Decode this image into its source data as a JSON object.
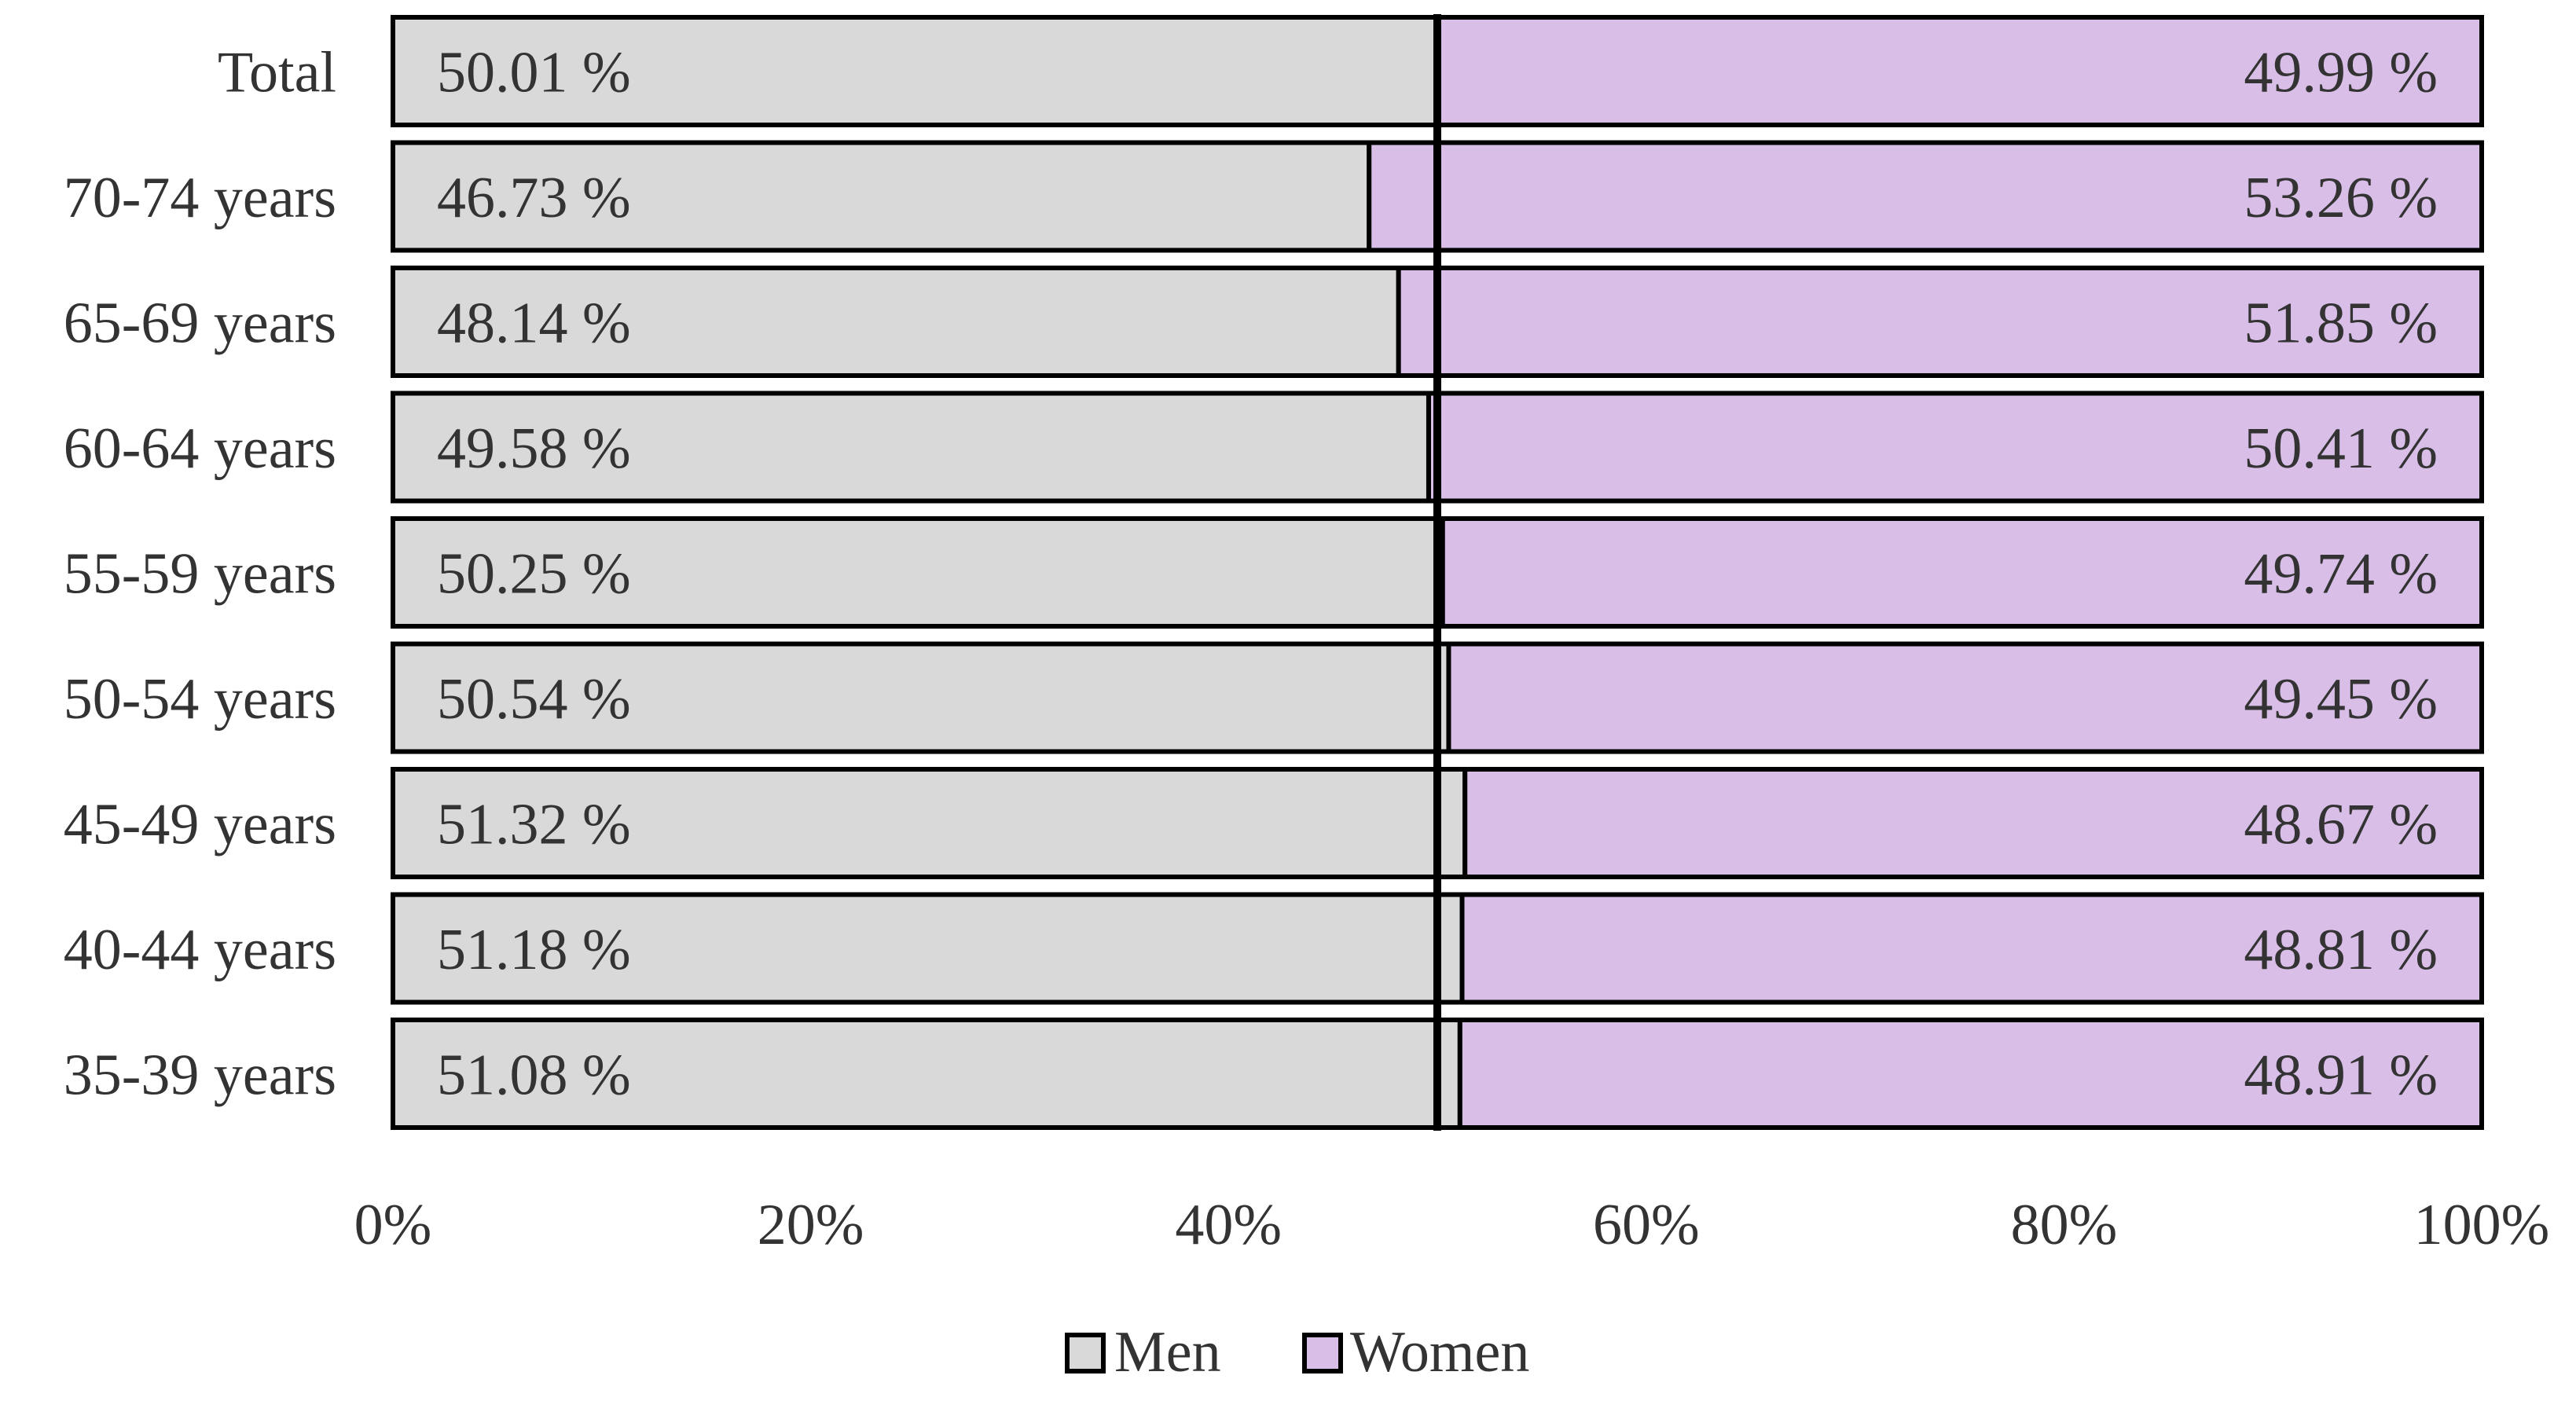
{
  "chart_data": {
    "type": "bar",
    "orientation": "horizontal",
    "stacked": "100%",
    "categories": [
      "Total",
      "70-74 years",
      "65-69 years",
      "60-64 years",
      "55-59 years",
      "50-54 years",
      "45-49 years",
      "40-44 years",
      "35-39 years"
    ],
    "series": [
      {
        "name": "Men",
        "color": "#d9d9d9",
        "values": [
          50.01,
          46.73,
          48.14,
          49.58,
          50.25,
          50.54,
          51.32,
          51.18,
          51.08
        ],
        "labels": [
          "50.01 %",
          "46.73 %",
          "48.14 %",
          "49.58 %",
          "50.25 %",
          "50.54 %",
          "51.32 %",
          "51.18 %",
          "51.08 %"
        ]
      },
      {
        "name": "Women",
        "color": "#d9bfe8",
        "values": [
          49.99,
          53.26,
          51.85,
          50.41,
          49.74,
          49.45,
          48.67,
          48.81,
          48.91
        ],
        "labels": [
          "49.99 %",
          "53.26 %",
          "51.85 %",
          "50.41 %",
          "49.74 %",
          "49.45 %",
          "48.67 %",
          "48.81 %",
          "48.91 %"
        ]
      }
    ],
    "x_ticks": [
      "0%",
      "20%",
      "40%",
      "60%",
      "80%",
      "100%"
    ],
    "xlim": [
      0,
      100
    ],
    "reference_line": 50,
    "grid": false,
    "legend_position": "bottom",
    "title": "",
    "xlabel": "",
    "ylabel": ""
  }
}
